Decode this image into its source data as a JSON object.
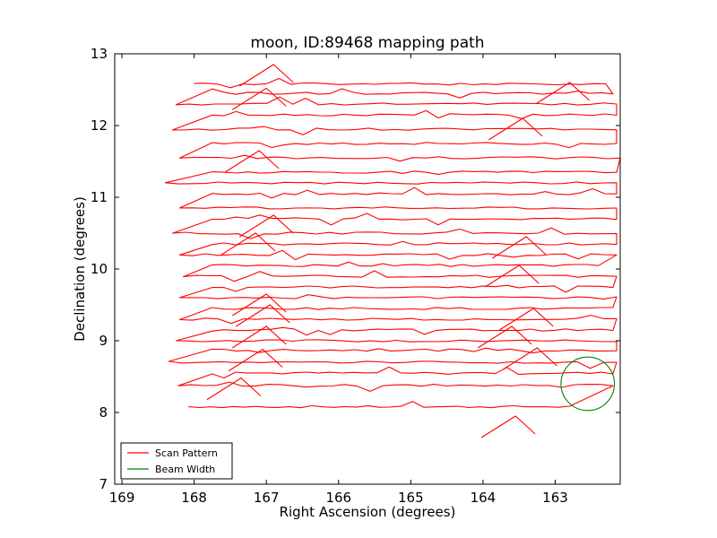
{
  "chart_data": {
    "type": "line",
    "title": "moon, ID:89468 mapping path",
    "xlabel": "Right Ascension (degrees)",
    "ylabel": "Declination (degrees)",
    "xlim": [
      169.1,
      162.1
    ],
    "ylim": [
      7,
      13
    ],
    "x_ticks": [
      169,
      168,
      167,
      166,
      165,
      164,
      163
    ],
    "y_ticks": [
      7,
      8,
      9,
      10,
      11,
      12,
      13
    ],
    "x_tick_labels": [
      "169",
      "168",
      "167",
      "166",
      "165",
      "164",
      "163"
    ],
    "y_tick_labels": [
      "7",
      "8",
      "9",
      "10",
      "11",
      "12",
      "13"
    ],
    "grid": false,
    "legend_position": "lower-left",
    "series": [
      {
        "name": "Scan Pattern",
        "color": "#ff0000",
        "rows": [
          {
            "dec": 8.08,
            "x_start": 168.08,
            "x_end": 162.8
          },
          {
            "dec": 8.38,
            "x_start": 168.22,
            "x_end": 162.2
          },
          {
            "dec": 8.55,
            "x_start": 167.75,
            "x_end": 162.2
          },
          {
            "dec": 8.7,
            "x_start": 168.35,
            "x_end": 162.15
          },
          {
            "dec": 8.87,
            "x_start": 167.75,
            "x_end": 162.15
          },
          {
            "dec": 9.0,
            "x_start": 168.25,
            "x_end": 162.15
          },
          {
            "dec": 9.15,
            "x_start": 167.75,
            "x_end": 162.2
          },
          {
            "dec": 9.3,
            "x_start": 168.2,
            "x_end": 162.15
          },
          {
            "dec": 9.45,
            "x_start": 167.75,
            "x_end": 162.2
          },
          {
            "dec": 9.6,
            "x_start": 168.2,
            "x_end": 162.15
          },
          {
            "dec": 9.75,
            "x_start": 167.75,
            "x_end": 162.2
          },
          {
            "dec": 9.9,
            "x_start": 168.15,
            "x_end": 162.15
          },
          {
            "dec": 10.05,
            "x_start": 167.75,
            "x_end": 162.4
          },
          {
            "dec": 10.2,
            "x_start": 168.2,
            "x_end": 162.15
          },
          {
            "dec": 10.35,
            "x_start": 167.75,
            "x_end": 162.15
          },
          {
            "dec": 10.5,
            "x_start": 168.3,
            "x_end": 162.15
          },
          {
            "dec": 10.7,
            "x_start": 167.75,
            "x_end": 162.15
          },
          {
            "dec": 10.85,
            "x_start": 168.2,
            "x_end": 162.15
          },
          {
            "dec": 11.05,
            "x_start": 167.75,
            "x_end": 162.15
          },
          {
            "dec": 11.2,
            "x_start": 168.4,
            "x_end": 162.15
          },
          {
            "dec": 11.35,
            "x_start": 167.75,
            "x_end": 162.15
          },
          {
            "dec": 11.55,
            "x_start": 168.2,
            "x_end": 162.1
          },
          {
            "dec": 11.75,
            "x_start": 167.75,
            "x_end": 162.15
          },
          {
            "dec": 11.95,
            "x_start": 168.3,
            "x_end": 162.15
          },
          {
            "dec": 12.15,
            "x_start": 167.75,
            "x_end": 162.15
          },
          {
            "dec": 12.3,
            "x_start": 168.25,
            "x_end": 162.15
          },
          {
            "dec": 12.45,
            "x_start": 167.75,
            "x_end": 162.2
          },
          {
            "dec": 12.58,
            "x_start": 168.0,
            "x_end": 162.3
          }
        ],
        "peaks": [
          [
            166.9,
            12.85
          ],
          [
            167.0,
            12.52
          ],
          [
            167.1,
            11.65
          ],
          [
            166.9,
            10.75
          ],
          [
            167.15,
            10.5
          ],
          [
            167.0,
            9.65
          ],
          [
            166.95,
            9.5
          ],
          [
            167.0,
            9.2
          ],
          [
            167.05,
            8.88
          ],
          [
            167.35,
            8.48
          ],
          [
            163.4,
            10.45
          ],
          [
            163.3,
            9.45
          ],
          [
            163.5,
            10.05
          ],
          [
            163.6,
            9.2
          ],
          [
            163.25,
            8.9
          ],
          [
            163.55,
            7.95
          ],
          [
            162.8,
            12.6
          ],
          [
            163.45,
            12.1
          ]
        ]
      },
      {
        "name": "Beam Width",
        "color": "#008000",
        "center": [
          162.55,
          8.4
        ],
        "radius_deg": 0.37
      }
    ]
  }
}
